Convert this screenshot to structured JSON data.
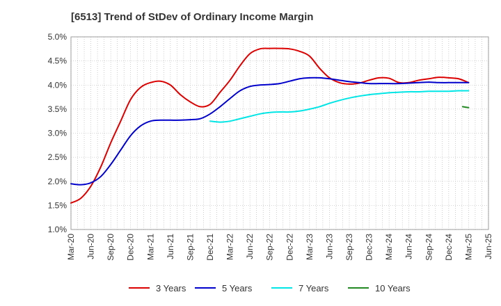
{
  "chart_data": {
    "type": "line",
    "title": "[6513]  Trend of StDev of Ordinary Income Margin",
    "xlabel": "",
    "ylabel": "",
    "x_ticks": [
      "Mar-20",
      "Jun-20",
      "Sep-20",
      "Dec-20",
      "Mar-21",
      "Jun-21",
      "Sep-21",
      "Dec-21",
      "Mar-22",
      "Jun-22",
      "Sep-22",
      "Dec-22",
      "Mar-23",
      "Jun-23",
      "Sep-23",
      "Dec-23",
      "Mar-24",
      "Jun-24",
      "Sep-24",
      "Dec-24",
      "Mar-25",
      "Jun-25"
    ],
    "y_ticks": [
      "1.0%",
      "1.5%",
      "2.0%",
      "2.5%",
      "3.0%",
      "3.5%",
      "4.0%",
      "4.5%",
      "5.0%"
    ],
    "ylim": [
      1.0,
      5.0
    ],
    "grid": true,
    "legend_position": "bottom",
    "series": [
      {
        "name": "3 Years",
        "color": "#dd0000",
        "x": [
          0,
          0.5,
          1,
          1.5,
          2,
          2.5,
          3,
          3.5,
          4,
          4.5,
          5,
          5.5,
          6,
          6.5,
          7,
          7.5,
          8,
          8.5,
          9,
          9.5,
          10,
          10.5,
          11,
          11.5,
          12,
          12.5,
          13,
          13.5,
          14,
          14.5,
          15,
          15.5,
          16,
          16.5,
          17,
          17.5,
          18,
          18.5,
          19,
          19.5,
          20
        ],
        "values": [
          1.55,
          1.65,
          1.9,
          2.3,
          2.8,
          3.25,
          3.7,
          3.95,
          4.05,
          4.08,
          4.0,
          3.8,
          3.65,
          3.55,
          3.6,
          3.85,
          4.1,
          4.4,
          4.65,
          4.75,
          4.76,
          4.76,
          4.75,
          4.7,
          4.6,
          4.35,
          4.15,
          4.05,
          4.02,
          4.04,
          4.1,
          4.15,
          4.14,
          4.05,
          4.05,
          4.1,
          4.13,
          4.16,
          4.15,
          4.13,
          4.05
        ]
      },
      {
        "name": "5 Years",
        "color": "#0000cc",
        "x": [
          0,
          0.5,
          1,
          1.5,
          2,
          2.5,
          3,
          3.5,
          4,
          4.5,
          5,
          5.5,
          6,
          6.5,
          7,
          7.5,
          8,
          8.5,
          9,
          9.5,
          10,
          10.5,
          11,
          11.5,
          12,
          12.5,
          13,
          13.5,
          14,
          14.5,
          15,
          15.5,
          16,
          16.5,
          17,
          17.5,
          18,
          18.5,
          19,
          19.5,
          20
        ],
        "values": [
          1.95,
          1.93,
          1.97,
          2.1,
          2.35,
          2.65,
          2.95,
          3.15,
          3.25,
          3.27,
          3.27,
          3.27,
          3.28,
          3.3,
          3.4,
          3.55,
          3.72,
          3.88,
          3.97,
          4.0,
          4.01,
          4.03,
          4.08,
          4.13,
          4.15,
          4.15,
          4.13,
          4.1,
          4.07,
          4.05,
          4.03,
          4.03,
          4.03,
          4.03,
          4.04,
          4.05,
          4.06,
          4.05,
          4.05,
          4.05,
          4.05
        ]
      },
      {
        "name": "7 Years",
        "color": "#00e5e5",
        "x": [
          7,
          7.5,
          8,
          8.5,
          9,
          9.5,
          10,
          10.5,
          11,
          11.5,
          12,
          12.5,
          13,
          13.5,
          14,
          14.5,
          15,
          15.5,
          16,
          16.5,
          17,
          17.5,
          18,
          18.5,
          19,
          19.5,
          20
        ],
        "values": [
          3.25,
          3.23,
          3.25,
          3.3,
          3.35,
          3.4,
          3.43,
          3.44,
          3.44,
          3.46,
          3.5,
          3.55,
          3.62,
          3.68,
          3.73,
          3.77,
          3.8,
          3.82,
          3.84,
          3.85,
          3.86,
          3.86,
          3.87,
          3.87,
          3.87,
          3.88,
          3.88
        ]
      },
      {
        "name": "10 Years",
        "color": "#228822",
        "x": [
          19.7,
          20
        ],
        "values": [
          3.55,
          3.53
        ]
      }
    ]
  }
}
